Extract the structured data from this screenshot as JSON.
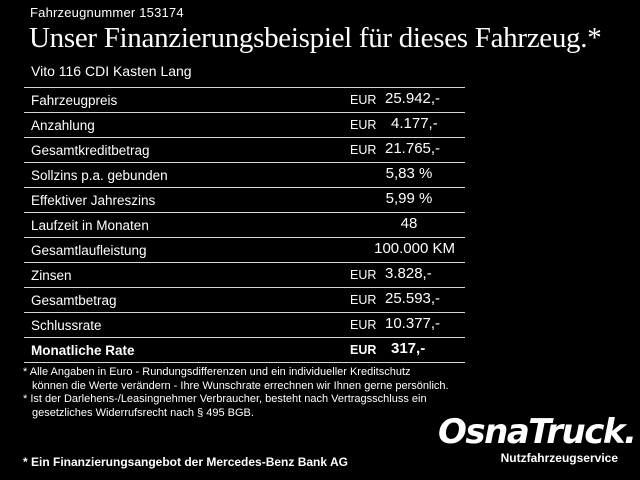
{
  "header": {
    "vehicle_number": "Fahrzeugnummer 153174",
    "headline": "Unser Finanzierungsbeispiel für dieses Fahrzeug.*",
    "model": "Vito 116 CDI Kasten Lang"
  },
  "table": {
    "rows": [
      {
        "label": "Fahrzeugpreis",
        "currency": "EUR",
        "value": "25.942,-"
      },
      {
        "label": "Anzahlung",
        "currency": "EUR",
        "value": "4.177,-"
      },
      {
        "label": "Gesamtkreditbetrag",
        "currency": "EUR",
        "value": "21.765,-"
      },
      {
        "label": "Sollzins p.a. gebunden",
        "currency": "",
        "value": "5,83 %"
      },
      {
        "label": "Effektiver Jahreszins",
        "currency": "",
        "value": "5,99 %"
      },
      {
        "label": "Laufzeit in Monaten",
        "currency": "",
        "value": "48"
      },
      {
        "label": "Gesamtlaufleistung",
        "currency": "",
        "value": "100.000 KM"
      },
      {
        "label": "Zinsen",
        "currency": "EUR",
        "value": "3.828,-"
      },
      {
        "label": "Gesamtbetrag",
        "currency": "EUR",
        "value": "25.593,-"
      },
      {
        "label": "Schlussrate",
        "currency": "EUR",
        "value": "10.377,-"
      },
      {
        "label": "Monatliche Rate",
        "currency": "EUR",
        "value": "317,-"
      }
    ]
  },
  "footnotes": {
    "line1": "* Alle Angaben in Euro - Rundungsdifferenzen und ein individueller Kreditschutz",
    "line2": "können die Werte verändern - Ihre Wunschrate errechnen wir Ihnen gerne persönlich.",
    "line3": "* Ist der Darlehens-/Leasingnehmer Verbraucher, besteht nach Vertragsschluss ein",
    "line4": "gesetzliches Widerrufsrecht nach § 495 BGB."
  },
  "bank_note": "* Ein Finanzierungsangebot der Mercedes-Benz Bank AG",
  "logo": {
    "brand": "OsnaTruck.",
    "subtitle": "Nutzfahrzeugservice"
  }
}
